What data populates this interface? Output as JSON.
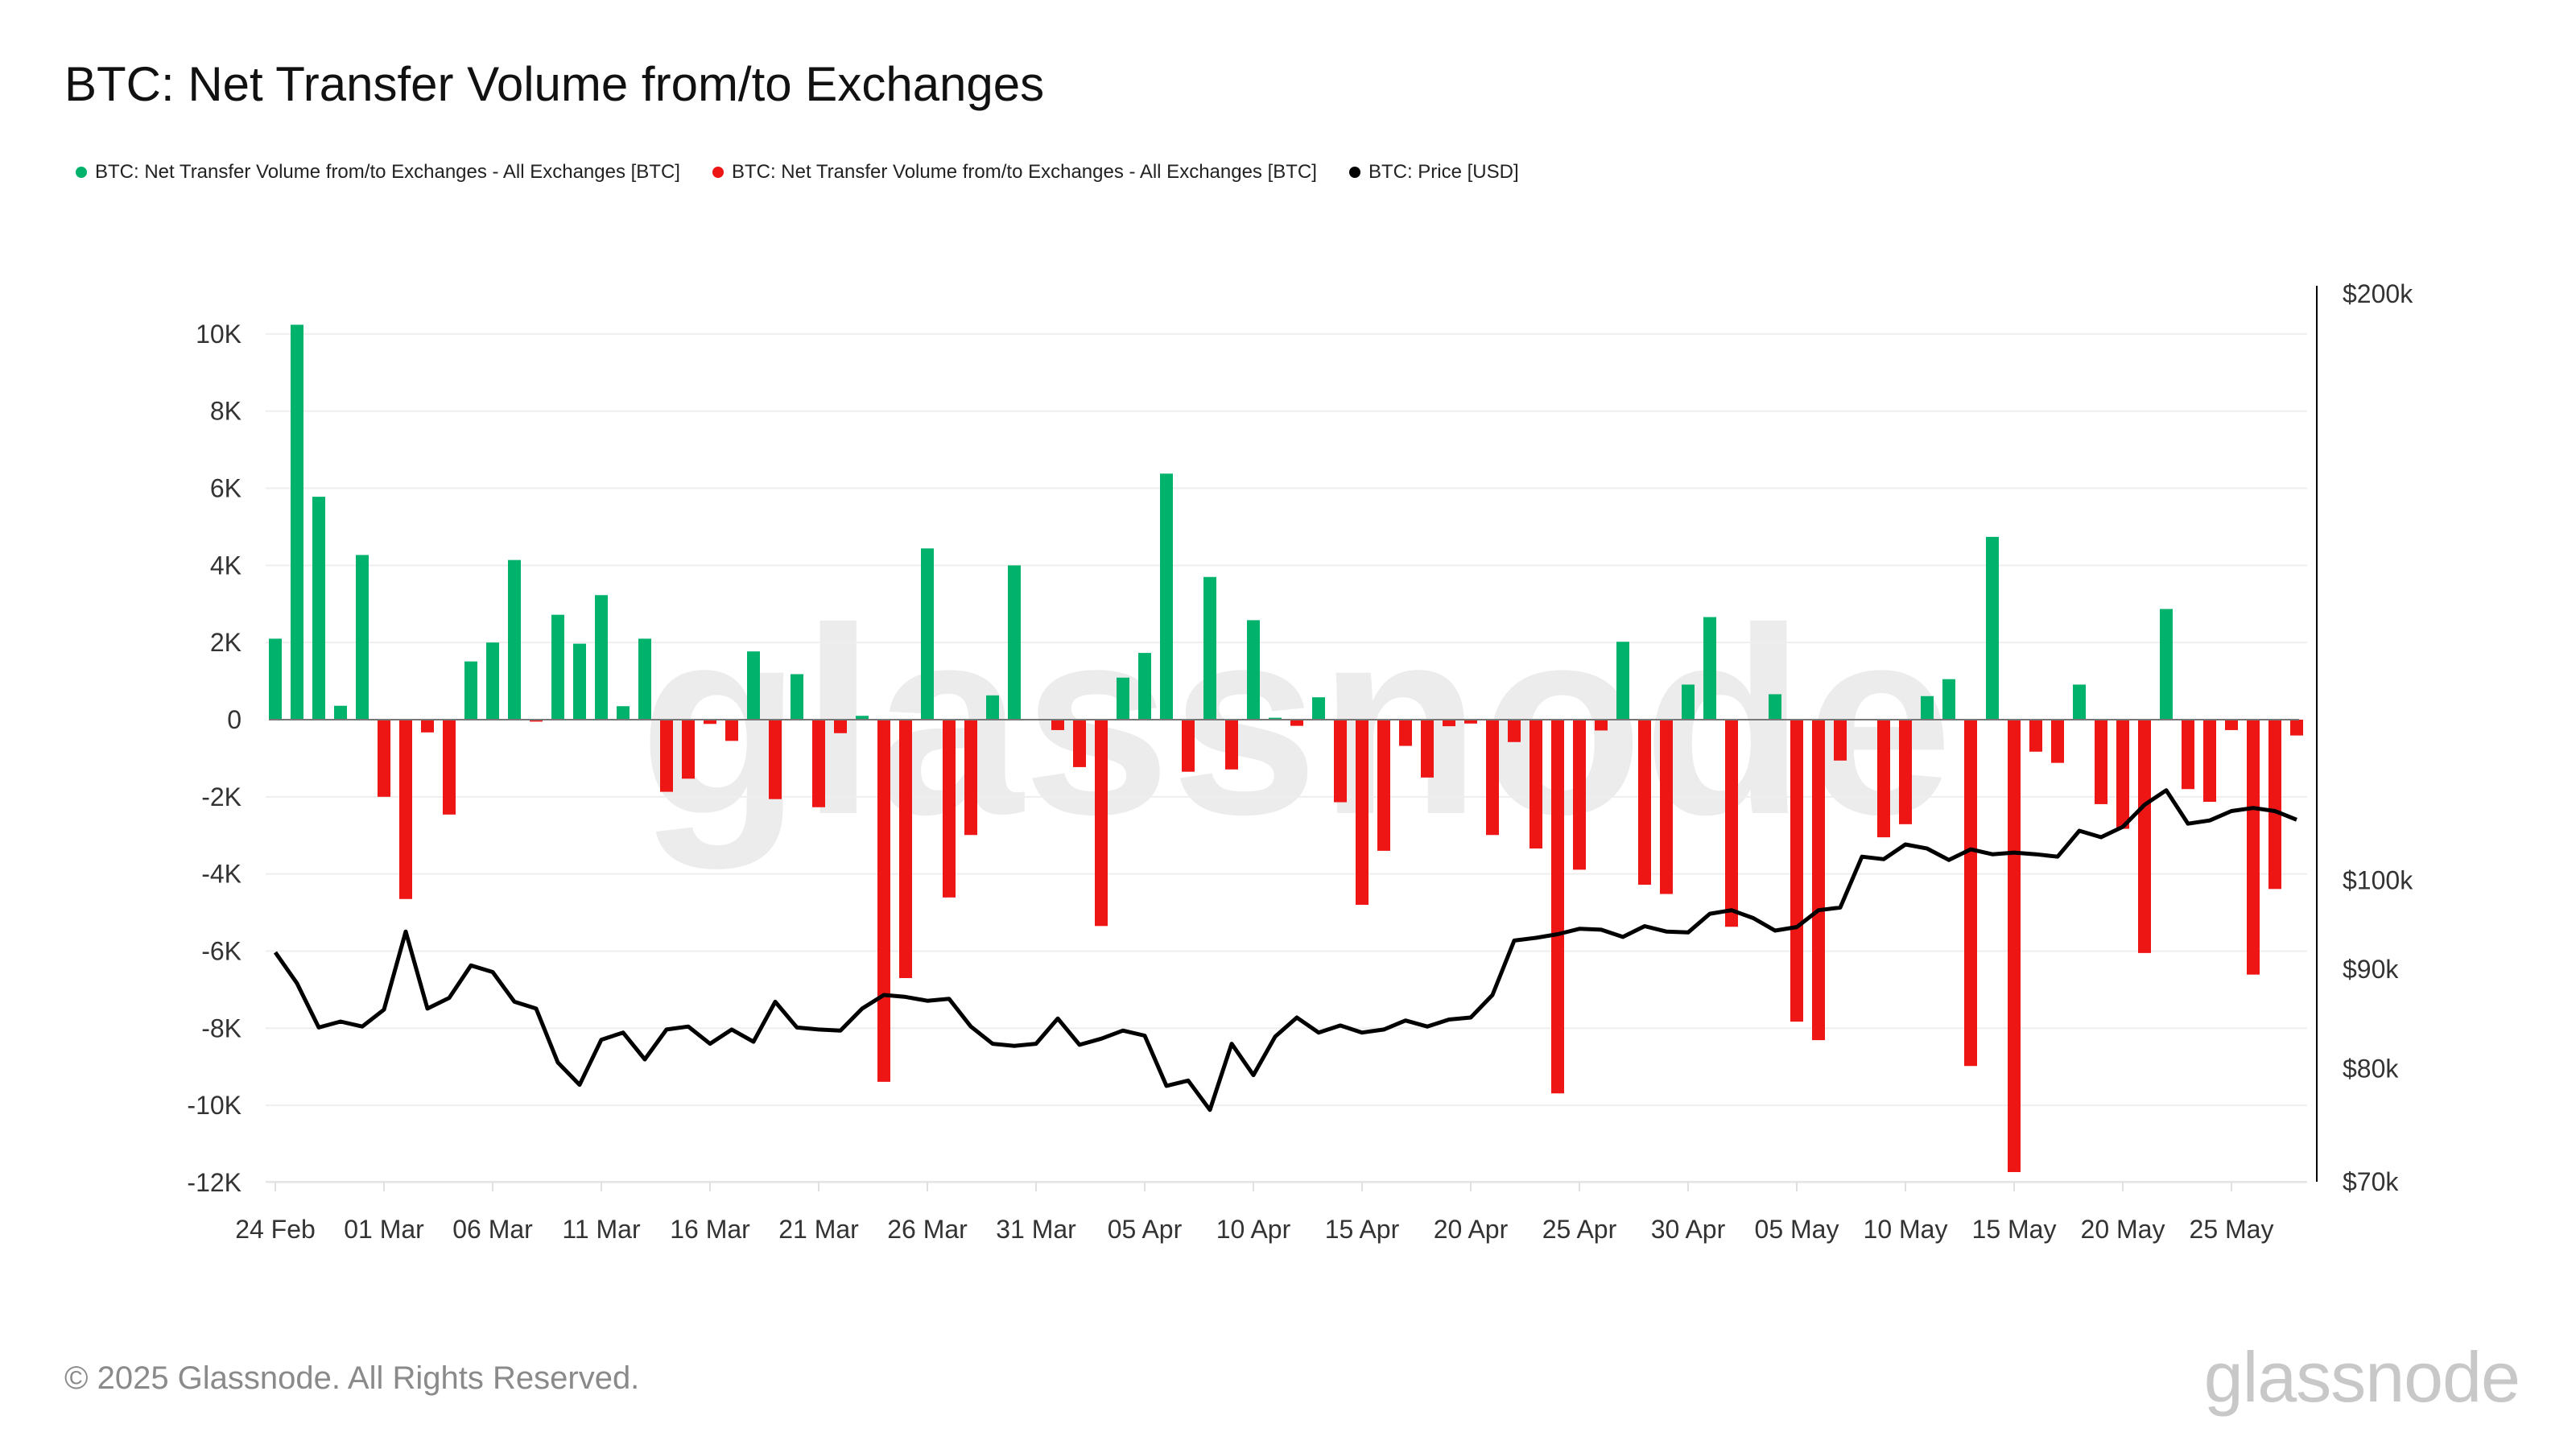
{
  "title": "BTC: Net Transfer Volume from/to Exchanges",
  "legend": [
    {
      "label": "BTC: Net Transfer Volume from/to Exchanges - All Exchanges [BTC]",
      "color": "#00b26b"
    },
    {
      "label": "BTC: Net Transfer Volume from/to Exchanges - All Exchanges [BTC]",
      "color": "#ee1515"
    },
    {
      "label": "BTC: Price [USD]",
      "color": "#000000"
    }
  ],
  "footer": "© 2025 Glassnode. All Rights Reserved.",
  "logo": "glassnode",
  "watermark": "glassnode",
  "chart_data": {
    "type": "bar",
    "title": "BTC: Net Transfer Volume from/to Exchanges",
    "start_date": "2025-02-24",
    "x_tick_labels": [
      "24 Feb",
      "01 Mar",
      "06 Mar",
      "11 Mar",
      "16 Mar",
      "21 Mar",
      "26 Mar",
      "31 Mar",
      "05 Apr",
      "10 Apr",
      "15 Apr",
      "20 Apr",
      "25 Apr",
      "30 Apr",
      "05 May",
      "10 May",
      "15 May",
      "20 May",
      "25 May"
    ],
    "y_left": {
      "ticks": [
        10000,
        8000,
        6000,
        4000,
        2000,
        0,
        -2000,
        -4000,
        -6000,
        -8000,
        -10000,
        -12000
      ],
      "tick_labels": [
        "10K",
        "8K",
        "6K",
        "4K",
        "2K",
        "0",
        "-2K",
        "-4K",
        "-6K",
        "-8K",
        "-10K",
        "-12K"
      ],
      "range": [
        -12000,
        11000
      ]
    },
    "y_right": {
      "scale": "log",
      "ticks": [
        200000,
        100000,
        90000,
        80000,
        70000
      ],
      "tick_labels": [
        "$200k",
        "$100k",
        "$90k",
        "$80k",
        "$70k"
      ],
      "range": [
        70000,
        200000
      ]
    },
    "colors": {
      "positive": "#00b26b",
      "negative": "#ee1515",
      "price": "#000000"
    },
    "series": [
      {
        "name": "Net Transfer Volume [BTC]",
        "type": "bar",
        "values": [
          2100,
          10240,
          5780,
          360,
          4270,
          -2000,
          -4650,
          -330,
          -2460,
          1510,
          2000,
          4140,
          -50,
          2720,
          1970,
          3230,
          350,
          2100,
          -1870,
          -1530,
          -110,
          -550,
          1770,
          -2060,
          1180,
          -2270,
          -350,
          100,
          -9390,
          -6700,
          4440,
          -4610,
          -2990,
          630,
          4000,
          0,
          -270,
          -1230,
          -5350,
          1090,
          1730,
          6380,
          -1350,
          3700,
          -1290,
          2580,
          50,
          -160,
          580,
          -2140,
          -4800,
          -3400,
          -680,
          -1500,
          -170,
          -100,
          -2990,
          -580,
          -3340,
          -9690,
          -3890,
          -280,
          2020,
          -4280,
          -4520,
          910,
          2660,
          -5370,
          0,
          660,
          -7830,
          -8310,
          -1060,
          0,
          -3050,
          -2710,
          610,
          1050,
          -8980,
          4740,
          -11730,
          -830,
          -1120,
          910,
          -2190,
          -2830,
          -6050,
          2870,
          -1800,
          -2130,
          -270,
          -6610,
          -4390,
          -410
        ]
      },
      {
        "name": "BTC: Price [USD]",
        "type": "line",
        "values": [
          91800,
          88500,
          84000,
          84600,
          84100,
          85800,
          94100,
          85900,
          87000,
          90400,
          89700,
          86600,
          85900,
          80600,
          78500,
          82800,
          83500,
          80900,
          83800,
          84100,
          82400,
          83800,
          82600,
          86600,
          84000,
          83800,
          83700,
          85900,
          87300,
          87100,
          86700,
          86900,
          84100,
          82400,
          82200,
          82400,
          84900,
          82300,
          82900,
          83700,
          83200,
          78400,
          78900,
          76200,
          82400,
          79400,
          83100,
          85000,
          83500,
          84200,
          83500,
          83800,
          84700,
          84100,
          84800,
          85000,
          87300,
          93100,
          93400,
          93800,
          94400,
          94300,
          93500,
          94700,
          94100,
          94000,
          96100,
          96500,
          95600,
          94200,
          94600,
          96500,
          96800,
          102800,
          102500,
          104300,
          103800,
          102400,
          103700,
          103100,
          103300,
          103100,
          102800,
          106000,
          105200,
          106500,
          109300,
          111200,
          106900,
          107300,
          108500,
          108900,
          108500,
          107400
        ]
      }
    ]
  }
}
